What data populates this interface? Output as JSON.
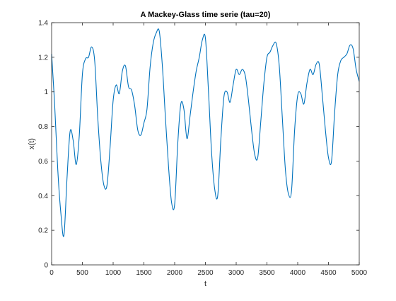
{
  "chart_data": {
    "type": "line",
    "title": "A Mackey-Glass time serie (tau=20)",
    "xlabel": "t",
    "ylabel": "x(t)",
    "xlim": [
      0,
      5000
    ],
    "ylim": [
      0,
      1.4
    ],
    "grid": false,
    "legend": "none",
    "x_ticks": [
      {
        "value": 0,
        "label": "0"
      },
      {
        "value": 500,
        "label": "500"
      },
      {
        "value": 1000,
        "label": "1000"
      },
      {
        "value": 1500,
        "label": "1500"
      },
      {
        "value": 2000,
        "label": "2000"
      },
      {
        "value": 2500,
        "label": "2500"
      },
      {
        "value": 3000,
        "label": "3000"
      },
      {
        "value": 3500,
        "label": "3500"
      },
      {
        "value": 4000,
        "label": "4000"
      },
      {
        "value": 4500,
        "label": "4500"
      },
      {
        "value": 5000,
        "label": "5000"
      }
    ],
    "y_ticks": [
      {
        "value": 0,
        "label": "0"
      },
      {
        "value": 0.2,
        "label": "0.2"
      },
      {
        "value": 0.4,
        "label": "0.4"
      },
      {
        "value": 0.6,
        "label": "0.6"
      },
      {
        "value": 0.8,
        "label": "0.8"
      },
      {
        "value": 1.0,
        "label": "1"
      },
      {
        "value": 1.2,
        "label": "1.2"
      },
      {
        "value": 1.4,
        "label": "1.4"
      }
    ],
    "series": [
      {
        "color": "#0072bd",
        "x": [
          0,
          50,
          100,
          150,
          200,
          250,
          300,
          350,
          400,
          450,
          500,
          550,
          600,
          650,
          700,
          750,
          800,
          850,
          900,
          950,
          1000,
          1050,
          1100,
          1150,
          1200,
          1250,
          1300,
          1350,
          1400,
          1450,
          1500,
          1550,
          1600,
          1650,
          1700,
          1750,
          1800,
          1850,
          1900,
          1950,
          2000,
          2050,
          2100,
          2150,
          2200,
          2250,
          2300,
          2350,
          2400,
          2450,
          2500,
          2550,
          2600,
          2650,
          2700,
          2750,
          2800,
          2850,
          2900,
          2950,
          3000,
          3050,
          3100,
          3150,
          3200,
          3250,
          3300,
          3350,
          3400,
          3450,
          3500,
          3550,
          3600,
          3650,
          3700,
          3750,
          3800,
          3850,
          3900,
          3950,
          4000,
          4050,
          4100,
          4150,
          4200,
          4250,
          4300,
          4350,
          4400,
          4450,
          4500,
          4550,
          4600,
          4650,
          4700,
          4750,
          4800,
          4850,
          4900,
          4950,
          5000
        ],
        "y": [
          1.22,
          0.92,
          0.55,
          0.3,
          0.17,
          0.5,
          0.77,
          0.72,
          0.58,
          0.75,
          1.1,
          1.19,
          1.2,
          1.26,
          1.18,
          0.85,
          0.6,
          0.46,
          0.46,
          0.68,
          0.95,
          1.04,
          0.99,
          1.12,
          1.15,
          1.03,
          1.01,
          0.92,
          0.78,
          0.75,
          0.82,
          0.9,
          1.14,
          1.28,
          1.34,
          1.35,
          1.15,
          0.85,
          0.57,
          0.36,
          0.35,
          0.7,
          0.93,
          0.9,
          0.73,
          0.86,
          1.0,
          1.12,
          1.2,
          1.3,
          1.31,
          1.0,
          0.65,
          0.44,
          0.4,
          0.72,
          0.97,
          1.0,
          0.94,
          1.04,
          1.13,
          1.1,
          1.13,
          1.09,
          0.95,
          0.78,
          0.64,
          0.62,
          0.83,
          1.05,
          1.2,
          1.23,
          1.27,
          1.28,
          1.15,
          0.85,
          0.55,
          0.41,
          0.43,
          0.78,
          0.98,
          0.99,
          0.93,
          1.05,
          1.13,
          1.1,
          1.16,
          1.16,
          0.98,
          0.78,
          0.62,
          0.6,
          0.88,
          1.1,
          1.18,
          1.2,
          1.22,
          1.27,
          1.25,
          1.13,
          1.06
        ]
      }
    ]
  }
}
